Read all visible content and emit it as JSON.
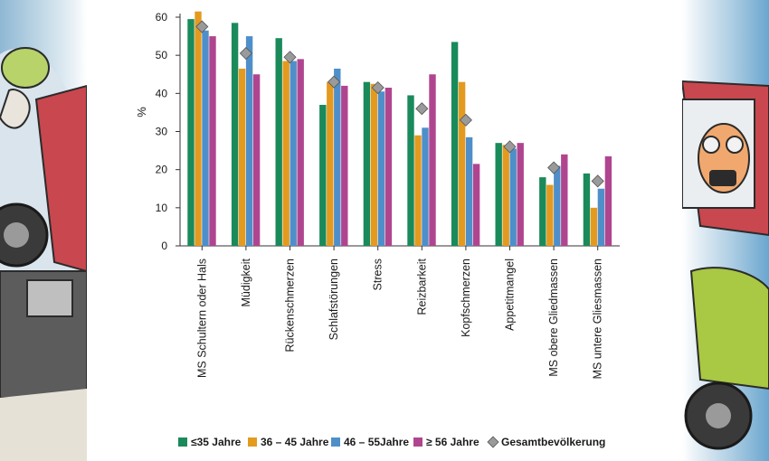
{
  "chart_data": {
    "type": "bar",
    "ylabel": "%",
    "ylim": [
      0,
      60
    ],
    "yticks": [
      0,
      10,
      20,
      30,
      40,
      50,
      60
    ],
    "grid": false,
    "legend_position": "bottom",
    "categories": [
      "MS Schultern oder Hals",
      "Müdigkeit",
      "Rückenschmerzen",
      "Schlafstörungen",
      "Stress",
      "Reizbarkeit",
      "Kopfschmerzen",
      "Appetitmangel",
      "MS obere Gliedmassen",
      "MS untere Gliesmassen"
    ],
    "series": [
      {
        "name": "≤35 Jahre",
        "color": "#1a8a5a",
        "values": [
          59.5,
          58.5,
          54.5,
          37.0,
          43.0,
          39.5,
          53.5,
          27.0,
          18.0,
          19.0
        ]
      },
      {
        "name": "36 – 45 Jahre",
        "color": "#e39a1e",
        "values": [
          61.5,
          46.5,
          48.5,
          43.0,
          42.5,
          29.0,
          43.0,
          26.5,
          16.0,
          10.0
        ]
      },
      {
        "name": "46 – 55Jahre",
        "color": "#4f8fc9",
        "values": [
          56.5,
          55.0,
          48.5,
          46.5,
          40.5,
          31.0,
          28.5,
          25.5,
          21.0,
          15.0
        ]
      },
      {
        "name": "≥ 56 Jahre",
        "color": "#b0458f",
        "values": [
          55.0,
          45.0,
          49.0,
          42.0,
          41.5,
          45.0,
          21.5,
          27.0,
          24.0,
          23.5
        ]
      }
    ],
    "overlay": {
      "name": "Gesamtbevölkerung",
      "marker": "diamond",
      "color": "#9a9a9a",
      "values": [
        57.5,
        50.5,
        49.5,
        43.0,
        41.5,
        36.0,
        33.0,
        26.0,
        20.5,
        17.0
      ]
    }
  }
}
